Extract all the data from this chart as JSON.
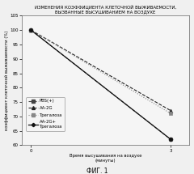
{
  "title": "ИЗМЕНЕНИЯ КОЭФФИЦИЕНТА КЛЕТОЧНОЙ ВЫЖИВАЕМОСТИ,\nВЫЗВАННЫЕ ВЫСУШИВАНИЕМ НА ВОЗДУХЕ",
  "xlabel": "Время высушивания на воздухе\n(минуты)",
  "ylabel": "коэффициент клеточной выживаемости (%)",
  "xlim": [
    -0.2,
    3.4
  ],
  "ylim": [
    60,
    105
  ],
  "yticks": [
    60,
    65,
    70,
    75,
    80,
    85,
    90,
    95,
    100,
    105
  ],
  "xticks": [
    0,
    3
  ],
  "fig_label": "ФИГ. 1",
  "series": [
    {
      "label": "PBS(+)",
      "x": [
        0,
        3
      ],
      "y": [
        100,
        62
      ],
      "color": "#444444",
      "linestyle": "--",
      "marker": "s",
      "markersize": 3.0,
      "linewidth": 0.8,
      "dashes": [
        4,
        2
      ]
    },
    {
      "label": "AA-2G",
      "x": [
        0,
        3
      ],
      "y": [
        100,
        72
      ],
      "color": "#222222",
      "linestyle": "--",
      "marker": "^",
      "markersize": 3.5,
      "linewidth": 0.8,
      "dashes": [
        4,
        2
      ]
    },
    {
      "label": "Трегалоза",
      "x": [
        0,
        3
      ],
      "y": [
        100,
        71
      ],
      "color": "#888888",
      "linestyle": ":",
      "marker": "s",
      "markersize": 3.0,
      "linewidth": 0.8,
      "dashes": [
        1,
        2
      ]
    },
    {
      "label": "AA-2G+\nТрегалоза",
      "x": [
        0,
        3
      ],
      "y": [
        100,
        62
      ],
      "color": "#111111",
      "linestyle": "-",
      "marker": "P",
      "markersize": 3.5,
      "linewidth": 0.9,
      "dashes": []
    }
  ],
  "background_color": "#f0f0f0",
  "plot_bg": "#f5f5f5",
  "title_fontsize": 4.0,
  "axis_fontsize": 3.8,
  "tick_fontsize": 4.0,
  "legend_fontsize": 3.8,
  "fig_label_fontsize": 5.5
}
